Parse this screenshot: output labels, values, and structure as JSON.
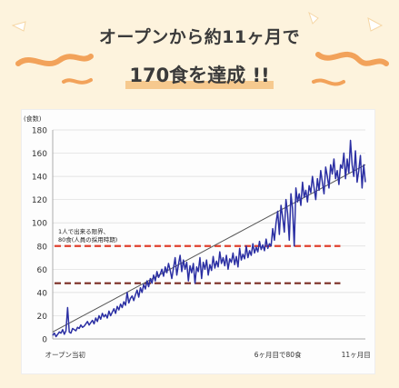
{
  "headline": {
    "line1": "オープンから約11ヶ月で",
    "line2": "170食を達成 !!"
  },
  "colors": {
    "background": "#fdf3dd",
    "ribbon": "#f2a25a",
    "series": "#2b2fa3",
    "trend": "#555555",
    "limit_line": "#e0412e",
    "ref_line": "#7a2d23",
    "highlight": "#f6c98e"
  },
  "chart_data": {
    "type": "line",
    "ylabel": "(食数)",
    "ylim": [
      0,
      180
    ],
    "yticks": [
      0,
      20,
      40,
      60,
      80,
      100,
      120,
      140,
      160,
      180
    ],
    "xlim": [
      0,
      100
    ],
    "xlabels": [
      {
        "label": "オープン当初",
        "x": 4
      },
      {
        "label": "6ヶ月目で80食",
        "x": 72
      },
      {
        "label": "11ヶ月目",
        "x": 97
      }
    ],
    "grid": true,
    "series": [
      {
        "values": [
          3,
          5,
          2,
          4,
          6,
          5,
          8,
          4,
          7,
          27,
          6,
          5,
          9,
          8,
          7,
          10,
          9,
          12,
          10,
          11,
          13,
          15,
          12,
          14,
          16,
          13,
          18,
          15,
          20,
          17,
          22,
          19,
          21,
          18,
          24,
          20,
          23,
          26,
          22,
          28,
          25,
          30,
          27,
          32,
          29,
          40,
          31,
          35,
          37,
          33,
          38,
          42,
          36,
          44,
          40,
          47,
          43,
          50,
          45,
          52,
          48,
          55,
          50,
          58,
          53,
          56,
          60,
          54,
          62,
          57,
          65,
          59,
          52,
          61,
          70,
          55,
          64,
          72,
          58,
          68,
          60,
          66,
          50,
          63,
          57,
          65,
          48,
          62,
          58,
          70,
          52,
          66,
          60,
          68,
          55,
          64,
          59,
          71,
          61,
          67,
          62,
          75,
          65,
          70,
          63,
          72,
          60,
          69,
          66,
          74,
          64,
          71,
          62,
          78,
          68,
          73,
          69,
          80,
          70,
          76,
          72,
          82,
          74,
          79,
          75,
          84,
          77,
          81,
          76,
          86,
          78,
          82,
          80,
          95,
          85,
          100,
          110,
          90,
          115,
          105,
          92,
          120,
          108,
          85,
          125,
          112,
          80,
          130,
          118,
          125,
          115,
          135,
          122,
          128,
          118,
          132,
          126,
          140,
          130,
          120,
          138,
          128,
          145,
          135,
          125,
          148,
          140,
          130,
          150,
          142,
          155,
          138,
          145,
          133,
          150,
          147,
          160,
          138,
          155,
          143,
          171,
          150,
          140,
          162,
          135,
          145,
          158,
          130,
          150,
          135
        ]
      }
    ],
    "trend": {
      "start": 6,
      "end": 150
    },
    "annotations": [
      {
        "text": "1人で出来る限界、\n80食(人員の採用時期)",
        "y": 80
      },
      {
        "text": "",
        "y": 48
      }
    ]
  }
}
